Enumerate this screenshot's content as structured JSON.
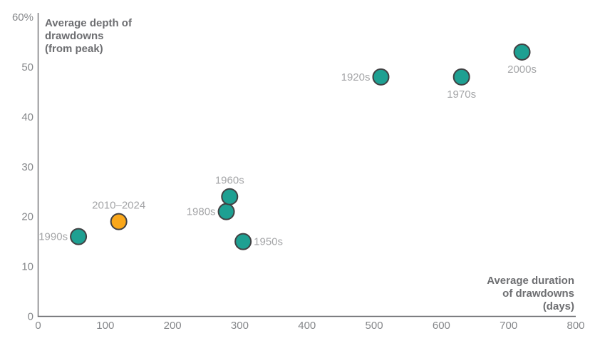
{
  "colors": {
    "teal": "#1ea092",
    "orange": "#faa71a",
    "point_stroke": "#414042",
    "axis_line": "#6d6e71",
    "tick_label": "#85878a",
    "axis_title": "#6d6e71",
    "point_label": "#a5a6a8",
    "background": "#ffffff"
  },
  "chart_data": {
    "type": "scatter",
    "title": "",
    "xlabel": "Average duration of drawdowns (days)",
    "ylabel": "Average depth of drawdowns (from peak)",
    "xlabel_lines": [
      "Average duration",
      "of drawdowns",
      "(days)"
    ],
    "ylabel_lines": [
      "Average depth of",
      "drawdowns",
      "(from peak)"
    ],
    "xlim": [
      0,
      800
    ],
    "ylim": [
      0,
      60
    ],
    "grid": false,
    "legend_position": "none",
    "x_ticks": [
      {
        "value": 0,
        "label": "0"
      },
      {
        "value": 100,
        "label": "100"
      },
      {
        "value": 200,
        "label": "200"
      },
      {
        "value": 300,
        "label": "300"
      },
      {
        "value": 400,
        "label": "400"
      },
      {
        "value": 500,
        "label": "500"
      },
      {
        "value": 600,
        "label": "600"
      },
      {
        "value": 700,
        "label": "700"
      },
      {
        "value": 800,
        "label": "800"
      }
    ],
    "y_ticks": [
      {
        "value": 0,
        "label": "0"
      },
      {
        "value": 10,
        "label": "10"
      },
      {
        "value": 20,
        "label": "20"
      },
      {
        "value": 30,
        "label": "30"
      },
      {
        "value": 40,
        "label": "40"
      },
      {
        "value": 50,
        "label": "50"
      },
      {
        "value": 60,
        "label": "60%"
      }
    ],
    "points": [
      {
        "label": "1990s",
        "x": 60,
        "y": 16,
        "color": "teal",
        "label_position": "left"
      },
      {
        "label": "2010–2024",
        "x": 120,
        "y": 19,
        "color": "orange",
        "label_position": "above"
      },
      {
        "label": "1980s",
        "x": 280,
        "y": 21,
        "color": "teal",
        "label_position": "left"
      },
      {
        "label": "1960s",
        "x": 285,
        "y": 24,
        "color": "teal",
        "label_position": "above"
      },
      {
        "label": "1950s",
        "x": 305,
        "y": 15,
        "color": "teal",
        "label_position": "right"
      },
      {
        "label": "1920s",
        "x": 510,
        "y": 48,
        "color": "teal",
        "label_position": "left"
      },
      {
        "label": "1970s",
        "x": 630,
        "y": 48,
        "color": "teal",
        "label_position": "below"
      },
      {
        "label": "2000s",
        "x": 720,
        "y": 53,
        "color": "teal",
        "label_position": "below"
      }
    ]
  }
}
